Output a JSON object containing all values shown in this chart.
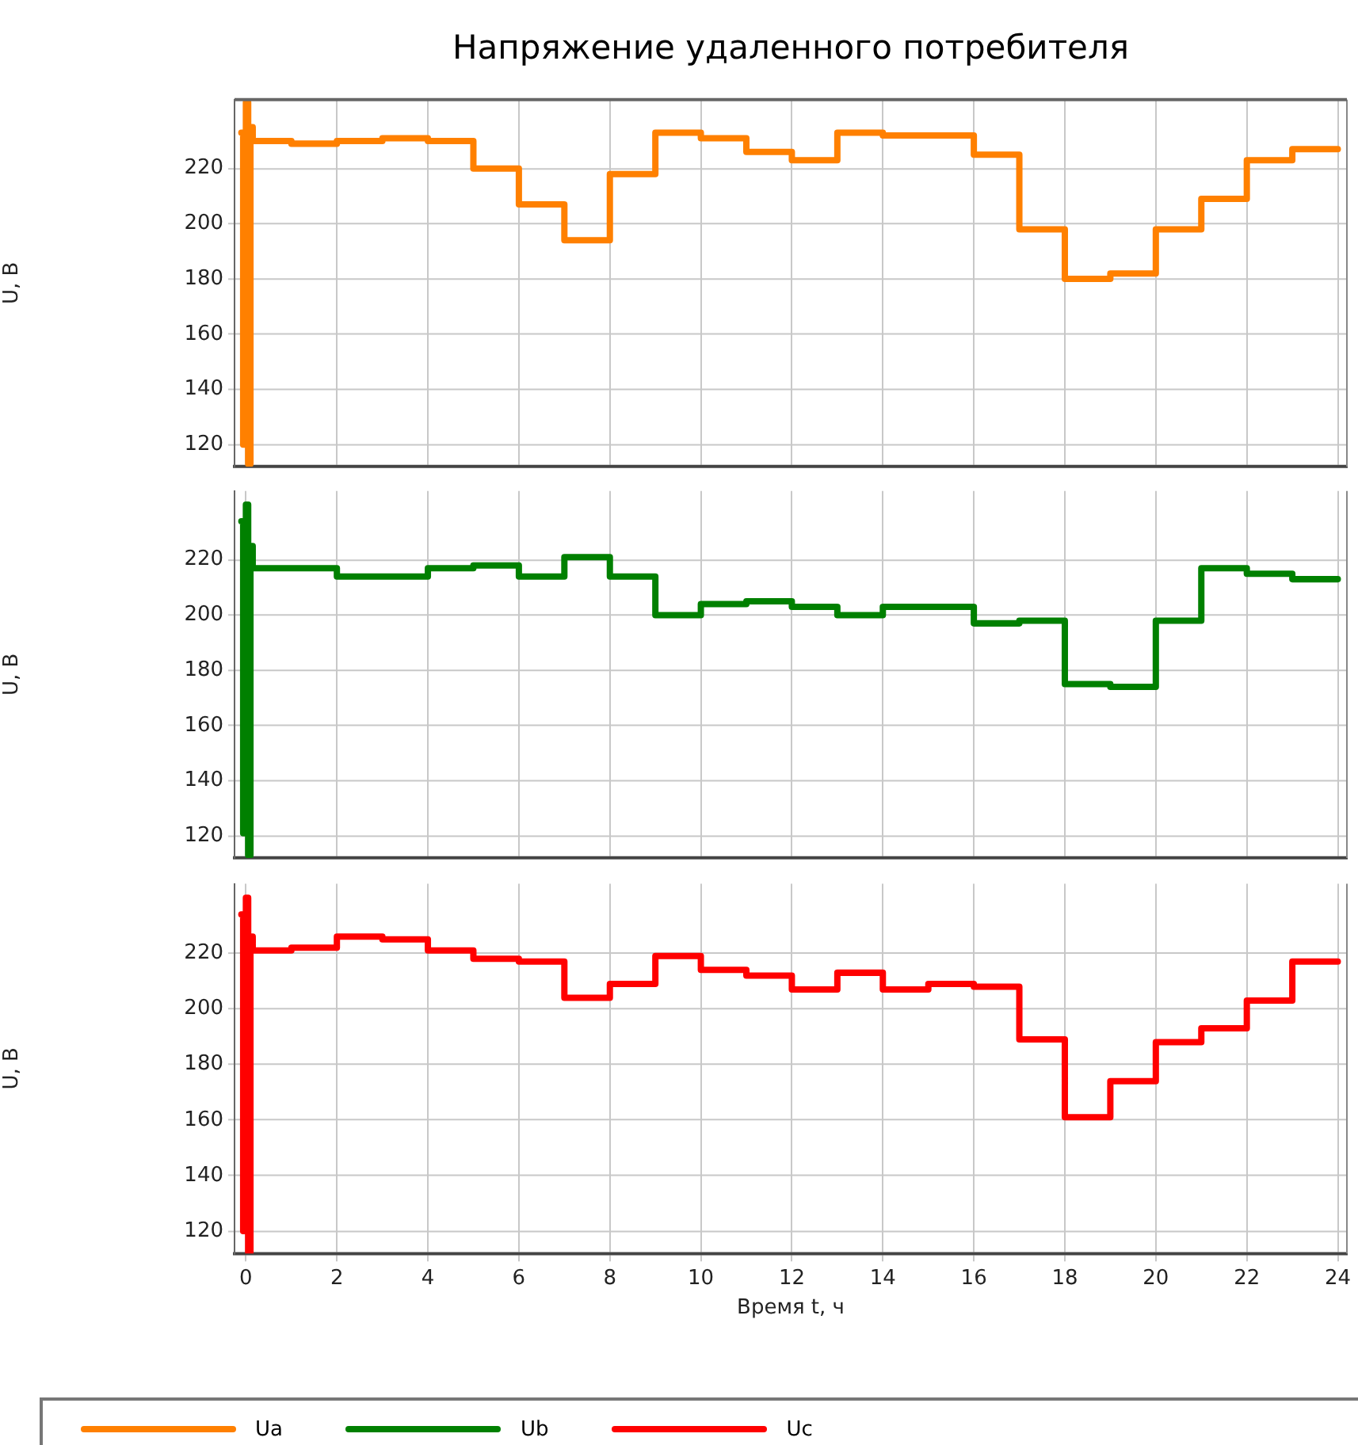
{
  "chart_data": [
    {
      "type": "step",
      "title": "Напряжение удаленного потребителя",
      "ylabel": "U, В",
      "xlim": [
        -0.25,
        24.2
      ],
      "xticks": [
        0,
        2,
        4,
        6,
        8,
        10,
        12,
        14,
        16,
        18,
        20,
        22,
        24
      ],
      "ylim": [
        112,
        245
      ],
      "yticks": [
        120,
        140,
        160,
        180,
        200,
        220
      ],
      "tick_labels": "y",
      "grid": true,
      "legend": "bottom",
      "marker": "none",
      "line_style": "solid",
      "series": [
        {
          "name": "Ua",
          "color": "#ff8000",
          "x": [
            -0.1,
            -0.06,
            0,
            0.05,
            0.1,
            0.15,
            1,
            2,
            3,
            4,
            5,
            6,
            7,
            8,
            9,
            10,
            11,
            12,
            13,
            14,
            16,
            17,
            18,
            19,
            20,
            21,
            22,
            23,
            24
          ],
          "values": [
            233,
            120,
            244,
            113,
            235,
            230,
            229,
            230,
            231,
            230,
            220,
            207,
            194,
            218,
            233,
            231,
            226,
            223,
            233,
            232,
            225,
            198,
            180,
            182,
            198,
            209,
            223,
            227,
            227
          ]
        }
      ]
    },
    {
      "type": "step",
      "ylabel": "U, В",
      "xlim": [
        -0.25,
        24.2
      ],
      "xticks": [
        0,
        2,
        4,
        6,
        8,
        10,
        12,
        14,
        16,
        18,
        20,
        22,
        24
      ],
      "ylim": [
        112,
        245
      ],
      "yticks": [
        120,
        140,
        160,
        180,
        200,
        220
      ],
      "tick_labels": "y",
      "grid": true,
      "legend": "bottom",
      "marker": "none",
      "line_style": "solid",
      "series": [
        {
          "name": "Ub",
          "color": "#008000",
          "x": [
            -0.1,
            -0.06,
            0,
            0.05,
            0.1,
            0.15,
            2,
            4,
            5,
            6,
            7,
            8,
            9,
            10,
            11,
            12,
            13,
            14,
            16,
            17,
            18,
            19,
            20,
            21,
            22,
            23,
            24
          ],
          "values": [
            234,
            121,
            240,
            113,
            225,
            217,
            214,
            217,
            218,
            214,
            221,
            214,
            200,
            204,
            205,
            203,
            200,
            203,
            197,
            198,
            175,
            174,
            198,
            217,
            215,
            213,
            213
          ]
        }
      ]
    },
    {
      "type": "step",
      "xlabel": "Время t, ч",
      "ylabel": "U, В",
      "xlim": [
        -0.25,
        24.2
      ],
      "xticks": [
        0,
        2,
        4,
        6,
        8,
        10,
        12,
        14,
        16,
        18,
        20,
        22,
        24
      ],
      "ylim": [
        112,
        245
      ],
      "yticks": [
        120,
        140,
        160,
        180,
        200,
        220
      ],
      "grid": true,
      "legend": "bottom",
      "marker": "none",
      "line_style": "solid",
      "series": [
        {
          "name": "Uc",
          "color": "#ff0000",
          "x": [
            -0.1,
            -0.06,
            0,
            0.05,
            0.1,
            0.15,
            1,
            2,
            3,
            4,
            5,
            6,
            7,
            8,
            9,
            10,
            11,
            12,
            13,
            14,
            15,
            16,
            17,
            18,
            19,
            20,
            21,
            22,
            23,
            24
          ],
          "values": [
            234,
            120,
            240,
            112,
            226,
            221,
            222,
            226,
            225,
            221,
            218,
            217,
            204,
            209,
            219,
            214,
            212,
            207,
            213,
            207,
            209,
            208,
            189,
            161,
            174,
            188,
            193,
            203,
            217,
            217
          ]
        }
      ]
    }
  ]
}
